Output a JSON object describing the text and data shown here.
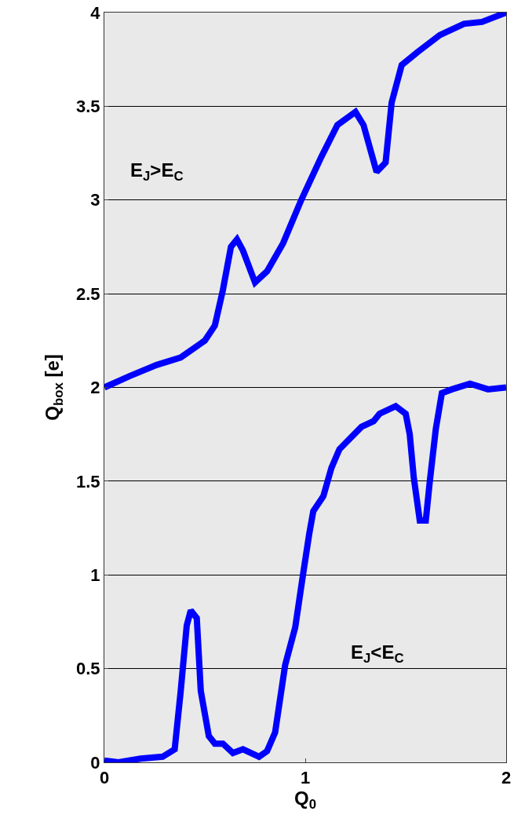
{
  "chart_data": {
    "type": "line",
    "xlabel": "Q$_{0}$",
    "ylabel": "Q$_{box}$ [e]",
    "xlim": [
      0,
      2
    ],
    "xticks": [
      0,
      1,
      2
    ],
    "ylim": [
      0,
      4
    ],
    "yticks": [
      0,
      0.5,
      1,
      1.5,
      2,
      2.5,
      3,
      3.5,
      4
    ],
    "grid": "y",
    "line_style": "solid",
    "marker": "none",
    "annotations": [
      "E$_{J}$>E$_{C}$",
      "E$_{J}$<E$_{C}$"
    ],
    "series": [
      {
        "color": "#0000ff",
        "x": [
          0,
          0.125,
          0.26,
          0.38,
          0.5,
          0.55,
          0.59,
          0.63,
          0.66,
          0.69,
          0.75,
          0.81,
          0.89,
          0.98,
          1.08,
          1.16,
          1.25,
          1.29,
          1.355,
          1.4,
          1.43,
          1.48,
          1.56,
          1.67,
          1.79,
          1.88,
          2
        ],
        "values": [
          2,
          2.06,
          2.12,
          2.16,
          2.25,
          2.33,
          2.52,
          2.75,
          2.79,
          2.73,
          2.56,
          2.62,
          2.77,
          3,
          3.23,
          3.4,
          3.47,
          3.4,
          3.15,
          3.2,
          3.52,
          3.72,
          3.79,
          3.88,
          3.94,
          3.95,
          4
        ]
      },
      {
        "color": "#0000ff",
        "x": [
          0,
          0.07,
          0.18,
          0.29,
          0.35,
          0.38,
          0.41,
          0.43,
          0.46,
          0.48,
          0.52,
          0.55,
          0.59,
          0.64,
          0.69,
          0.77,
          0.81,
          0.85,
          0.9,
          0.95,
          0.99,
          1.02,
          1.04,
          1.09,
          1.13,
          1.17,
          1.28,
          1.34,
          1.37,
          1.45,
          1.5,
          1.52,
          1.54,
          1.57,
          1.6,
          1.62,
          1.65,
          1.68,
          1.73,
          1.82,
          1.91,
          2
        ],
        "values": [
          0.01,
          0,
          0.02,
          0.03,
          0.07,
          0.38,
          0.73,
          0.81,
          0.77,
          0.38,
          0.14,
          0.1,
          0.1,
          0.05,
          0.07,
          0.03,
          0.06,
          0.16,
          0.52,
          0.72,
          1.01,
          1.22,
          1.34,
          1.42,
          1.57,
          1.67,
          1.79,
          1.82,
          1.86,
          1.9,
          1.86,
          1.75,
          1.52,
          1.29,
          1.29,
          1.5,
          1.78,
          1.97,
          1.99,
          2.02,
          1.99,
          2
        ]
      }
    ]
  }
}
